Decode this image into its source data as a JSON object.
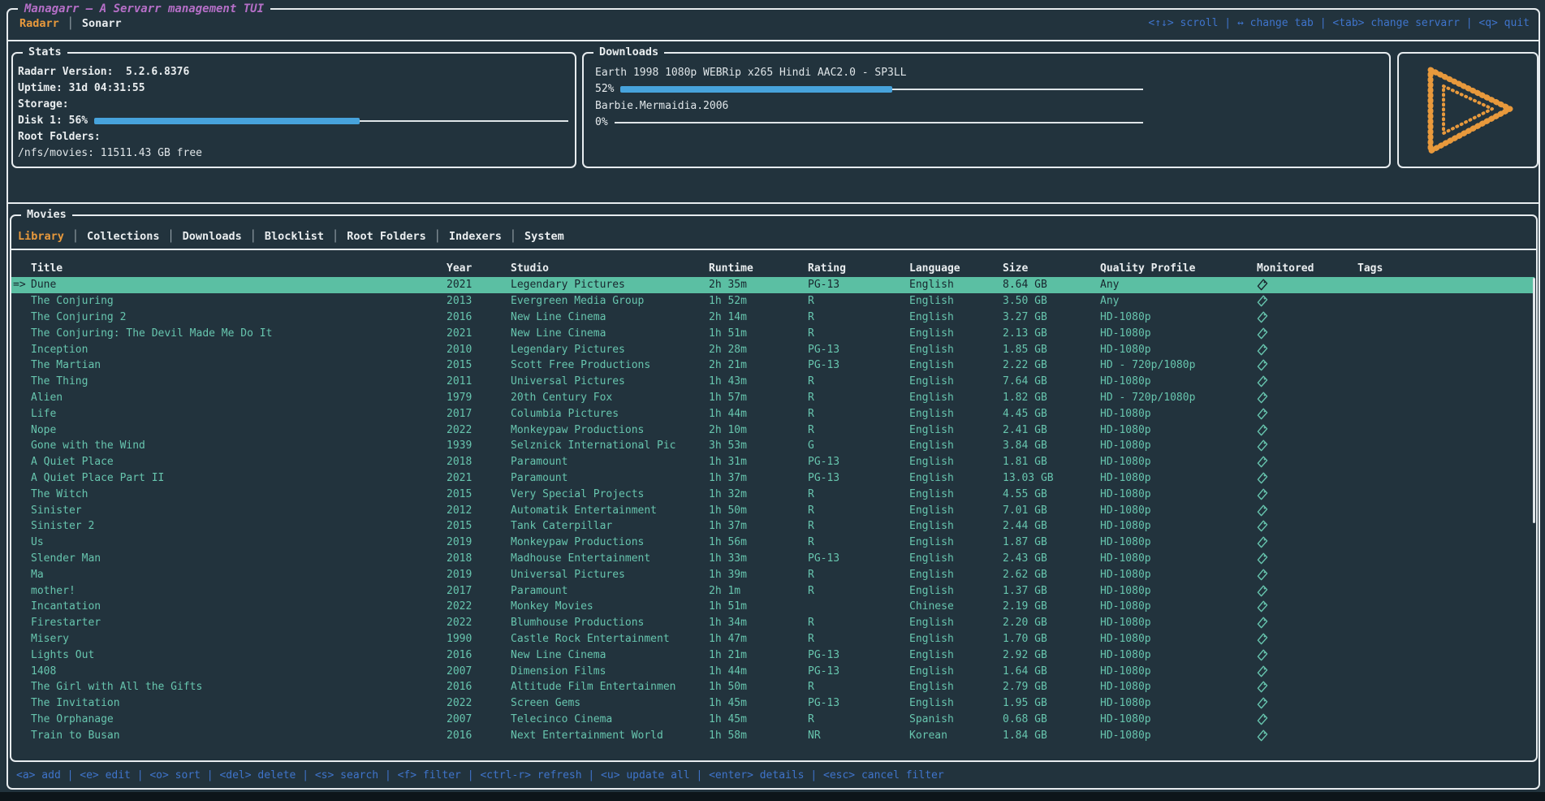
{
  "app": {
    "title": "Managarr – A Servarr management TUI"
  },
  "theme": {
    "background": "#22333d",
    "border_white": "#e7ecef",
    "accent_orange": "#e8993c",
    "title_purple": "#b56fc7",
    "keybind_blue": "#3f74cb",
    "table_teal": "#67c5ae",
    "selection_green": "#5bbfa3",
    "gauge_blue": "#47a3dc"
  },
  "ui": {
    "tab_separator": "│"
  },
  "header": {
    "tabs": [
      {
        "label": "Radarr",
        "active": true
      },
      {
        "label": "Sonarr",
        "active": false
      }
    ],
    "keybinds": "<↑↓> scroll | ↔ change tab | <tab> change servarr | <q> quit"
  },
  "stats": {
    "title": "Stats",
    "version_line": "Radarr Version:  5.2.6.8376",
    "uptime_line": "Uptime: 31d 04:31:55",
    "storage_label": "Storage:",
    "disk_label": "Disk 1: 56%",
    "disk_percent": 56,
    "root_folders_label": "Root Folders:",
    "root_folder_line": "/nfs/movies: 11511.43 GB free"
  },
  "downloads": {
    "title": "Downloads",
    "items": [
      {
        "name": "Earth 1998 1080p WEBRip x265 Hindi AAC2.0 - SP3LL",
        "percent_label": "52%",
        "percent": 52
      },
      {
        "name": "Barbie.Mermaidia.2006",
        "percent_label": "0%",
        "percent": 0
      }
    ]
  },
  "logo": {
    "name": "managarr-play-logo",
    "color": "#e8993c"
  },
  "movies": {
    "title": "Movies",
    "tabs": [
      {
        "label": "Library",
        "active": true
      },
      {
        "label": "Collections",
        "active": false
      },
      {
        "label": "Downloads",
        "active": false
      },
      {
        "label": "Blocklist",
        "active": false
      },
      {
        "label": "Root Folders",
        "active": false
      },
      {
        "label": "Indexers",
        "active": false
      },
      {
        "label": "System",
        "active": false
      }
    ],
    "table": {
      "selected_marker": "=>",
      "selected_index": 0,
      "columns": [
        "Title",
        "Year",
        "Studio",
        "Runtime",
        "Rating",
        "Language",
        "Size",
        "Quality Profile",
        "Monitored",
        "Tags"
      ],
      "rows": [
        {
          "title": "Dune",
          "year": "2021",
          "studio": "Legendary Pictures",
          "runtime": "2h 35m",
          "rating": "PG-13",
          "language": "English",
          "size": "8.64 GB",
          "quality_profile": "Any",
          "monitored": true,
          "tags": ""
        },
        {
          "title": "The Conjuring",
          "year": "2013",
          "studio": "Evergreen Media Group",
          "runtime": "1h 52m",
          "rating": "R",
          "language": "English",
          "size": "3.50 GB",
          "quality_profile": "Any",
          "monitored": true,
          "tags": ""
        },
        {
          "title": "The Conjuring 2",
          "year": "2016",
          "studio": "New Line Cinema",
          "runtime": "2h 14m",
          "rating": "R",
          "language": "English",
          "size": "3.27 GB",
          "quality_profile": "HD-1080p",
          "monitored": true,
          "tags": ""
        },
        {
          "title": "The Conjuring: The Devil Made Me Do It",
          "year": "2021",
          "studio": "New Line Cinema",
          "runtime": "1h 51m",
          "rating": "R",
          "language": "English",
          "size": "2.13 GB",
          "quality_profile": "HD-1080p",
          "monitored": true,
          "tags": ""
        },
        {
          "title": "Inception",
          "year": "2010",
          "studio": "Legendary Pictures",
          "runtime": "2h 28m",
          "rating": "PG-13",
          "language": "English",
          "size": "1.85 GB",
          "quality_profile": "HD-1080p",
          "monitored": true,
          "tags": ""
        },
        {
          "title": "The Martian",
          "year": "2015",
          "studio": "Scott Free Productions",
          "runtime": "2h 21m",
          "rating": "PG-13",
          "language": "English",
          "size": "2.22 GB",
          "quality_profile": "HD - 720p/1080p",
          "monitored": true,
          "tags": ""
        },
        {
          "title": "The Thing",
          "year": "2011",
          "studio": "Universal Pictures",
          "runtime": "1h 43m",
          "rating": "R",
          "language": "English",
          "size": "7.64 GB",
          "quality_profile": "HD-1080p",
          "monitored": true,
          "tags": ""
        },
        {
          "title": "Alien",
          "year": "1979",
          "studio": "20th Century Fox",
          "runtime": "1h 57m",
          "rating": "R",
          "language": "English",
          "size": "1.82 GB",
          "quality_profile": "HD - 720p/1080p",
          "monitored": true,
          "tags": ""
        },
        {
          "title": "Life",
          "year": "2017",
          "studio": "Columbia Pictures",
          "runtime": "1h 44m",
          "rating": "R",
          "language": "English",
          "size": "4.45 GB",
          "quality_profile": "HD-1080p",
          "monitored": true,
          "tags": ""
        },
        {
          "title": "Nope",
          "year": "2022",
          "studio": "Monkeypaw Productions",
          "runtime": "2h 10m",
          "rating": "R",
          "language": "English",
          "size": "2.41 GB",
          "quality_profile": "HD-1080p",
          "monitored": true,
          "tags": ""
        },
        {
          "title": "Gone with the Wind",
          "year": "1939",
          "studio": "Selznick International Pic",
          "runtime": "3h 53m",
          "rating": "G",
          "language": "English",
          "size": "3.84 GB",
          "quality_profile": "HD-1080p",
          "monitored": true,
          "tags": ""
        },
        {
          "title": "A Quiet Place",
          "year": "2018",
          "studio": "Paramount",
          "runtime": "1h 31m",
          "rating": "PG-13",
          "language": "English",
          "size": "1.81 GB",
          "quality_profile": "HD-1080p",
          "monitored": true,
          "tags": ""
        },
        {
          "title": "A Quiet Place Part II",
          "year": "2021",
          "studio": "Paramount",
          "runtime": "1h 37m",
          "rating": "PG-13",
          "language": "English",
          "size": "13.03 GB",
          "quality_profile": "HD-1080p",
          "monitored": true,
          "tags": ""
        },
        {
          "title": "The Witch",
          "year": "2015",
          "studio": "Very Special Projects",
          "runtime": "1h 32m",
          "rating": "R",
          "language": "English",
          "size": "4.55 GB",
          "quality_profile": "HD-1080p",
          "monitored": true,
          "tags": ""
        },
        {
          "title": "Sinister",
          "year": "2012",
          "studio": "Automatik Entertainment",
          "runtime": "1h 50m",
          "rating": "R",
          "language": "English",
          "size": "7.01 GB",
          "quality_profile": "HD-1080p",
          "monitored": true,
          "tags": ""
        },
        {
          "title": "Sinister 2",
          "year": "2015",
          "studio": "Tank Caterpillar",
          "runtime": "1h 37m",
          "rating": "R",
          "language": "English",
          "size": "2.44 GB",
          "quality_profile": "HD-1080p",
          "monitored": true,
          "tags": ""
        },
        {
          "title": "Us",
          "year": "2019",
          "studio": "Monkeypaw Productions",
          "runtime": "1h 56m",
          "rating": "R",
          "language": "English",
          "size": "1.87 GB",
          "quality_profile": "HD-1080p",
          "monitored": true,
          "tags": ""
        },
        {
          "title": "Slender Man",
          "year": "2018",
          "studio": "Madhouse Entertainment",
          "runtime": "1h 33m",
          "rating": "PG-13",
          "language": "English",
          "size": "2.43 GB",
          "quality_profile": "HD-1080p",
          "monitored": true,
          "tags": ""
        },
        {
          "title": "Ma",
          "year": "2019",
          "studio": "Universal Pictures",
          "runtime": "1h 39m",
          "rating": "R",
          "language": "English",
          "size": "2.62 GB",
          "quality_profile": "HD-1080p",
          "monitored": true,
          "tags": ""
        },
        {
          "title": "mother!",
          "year": "2017",
          "studio": "Paramount",
          "runtime": "2h 1m",
          "rating": "R",
          "language": "English",
          "size": "1.37 GB",
          "quality_profile": "HD-1080p",
          "monitored": true,
          "tags": ""
        },
        {
          "title": "Incantation",
          "year": "2022",
          "studio": "Monkey Movies",
          "runtime": "1h 51m",
          "rating": "",
          "language": "Chinese",
          "size": "2.19 GB",
          "quality_profile": "HD-1080p",
          "monitored": true,
          "tags": ""
        },
        {
          "title": "Firestarter",
          "year": "2022",
          "studio": "Blumhouse Productions",
          "runtime": "1h 34m",
          "rating": "R",
          "language": "English",
          "size": "2.20 GB",
          "quality_profile": "HD-1080p",
          "monitored": true,
          "tags": ""
        },
        {
          "title": "Misery",
          "year": "1990",
          "studio": "Castle Rock Entertainment",
          "runtime": "1h 47m",
          "rating": "R",
          "language": "English",
          "size": "1.70 GB",
          "quality_profile": "HD-1080p",
          "monitored": true,
          "tags": ""
        },
        {
          "title": "Lights Out",
          "year": "2016",
          "studio": "New Line Cinema",
          "runtime": "1h 21m",
          "rating": "PG-13",
          "language": "English",
          "size": "2.92 GB",
          "quality_profile": "HD-1080p",
          "monitored": true,
          "tags": ""
        },
        {
          "title": "1408",
          "year": "2007",
          "studio": "Dimension Films",
          "runtime": "1h 44m",
          "rating": "PG-13",
          "language": "English",
          "size": "1.64 GB",
          "quality_profile": "HD-1080p",
          "monitored": true,
          "tags": ""
        },
        {
          "title": "The Girl with All the Gifts",
          "year": "2016",
          "studio": "Altitude Film Entertainmen",
          "runtime": "1h 50m",
          "rating": "R",
          "language": "English",
          "size": "2.79 GB",
          "quality_profile": "HD-1080p",
          "monitored": true,
          "tags": ""
        },
        {
          "title": "The Invitation",
          "year": "2022",
          "studio": "Screen Gems",
          "runtime": "1h 45m",
          "rating": "PG-13",
          "language": "English",
          "size": "1.95 GB",
          "quality_profile": "HD-1080p",
          "monitored": true,
          "tags": ""
        },
        {
          "title": "The Orphanage",
          "year": "2007",
          "studio": "Telecinco Cinema",
          "runtime": "1h 45m",
          "rating": "R",
          "language": "Spanish",
          "size": "0.68 GB",
          "quality_profile": "HD-1080p",
          "monitored": true,
          "tags": ""
        },
        {
          "title": "Train to Busan",
          "year": "2016",
          "studio": "Next Entertainment World",
          "runtime": "1h 58m",
          "rating": "NR",
          "language": "Korean",
          "size": "1.84 GB",
          "quality_profile": "HD-1080p",
          "monitored": true,
          "tags": ""
        }
      ]
    }
  },
  "footer": {
    "keybinds": "<a> add | <e> edit | <o> sort | <del> delete | <s> search | <f> filter | <ctrl-r> refresh | <u> update all | <enter> details | <esc> cancel filter"
  }
}
